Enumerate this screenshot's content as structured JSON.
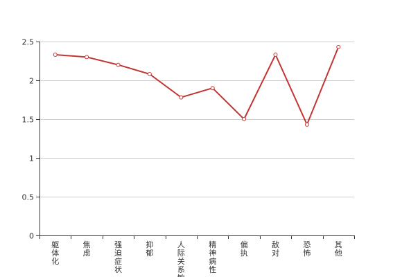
{
  "chart_data": {
    "type": "line",
    "categories": [
      "躯体化",
      "焦虑",
      "强迫症状",
      "抑郁",
      "人际关系敏感",
      "精神病性",
      "偏执",
      "敌对",
      "恐怖",
      "其他"
    ],
    "series": [
      {
        "values": [
          2.33,
          2.3,
          2.2,
          2.08,
          1.78,
          1.9,
          1.5,
          2.33,
          1.43,
          2.43
        ],
        "color": "#c23531"
      }
    ],
    "yticks": [
      "0",
      "0.5",
      "1",
      "1.5",
      "2",
      "2.5"
    ],
    "ylim": [
      0,
      2.5
    ],
    "grid": true,
    "legend": false,
    "title": "",
    "xlabel": "",
    "ylabel": ""
  }
}
